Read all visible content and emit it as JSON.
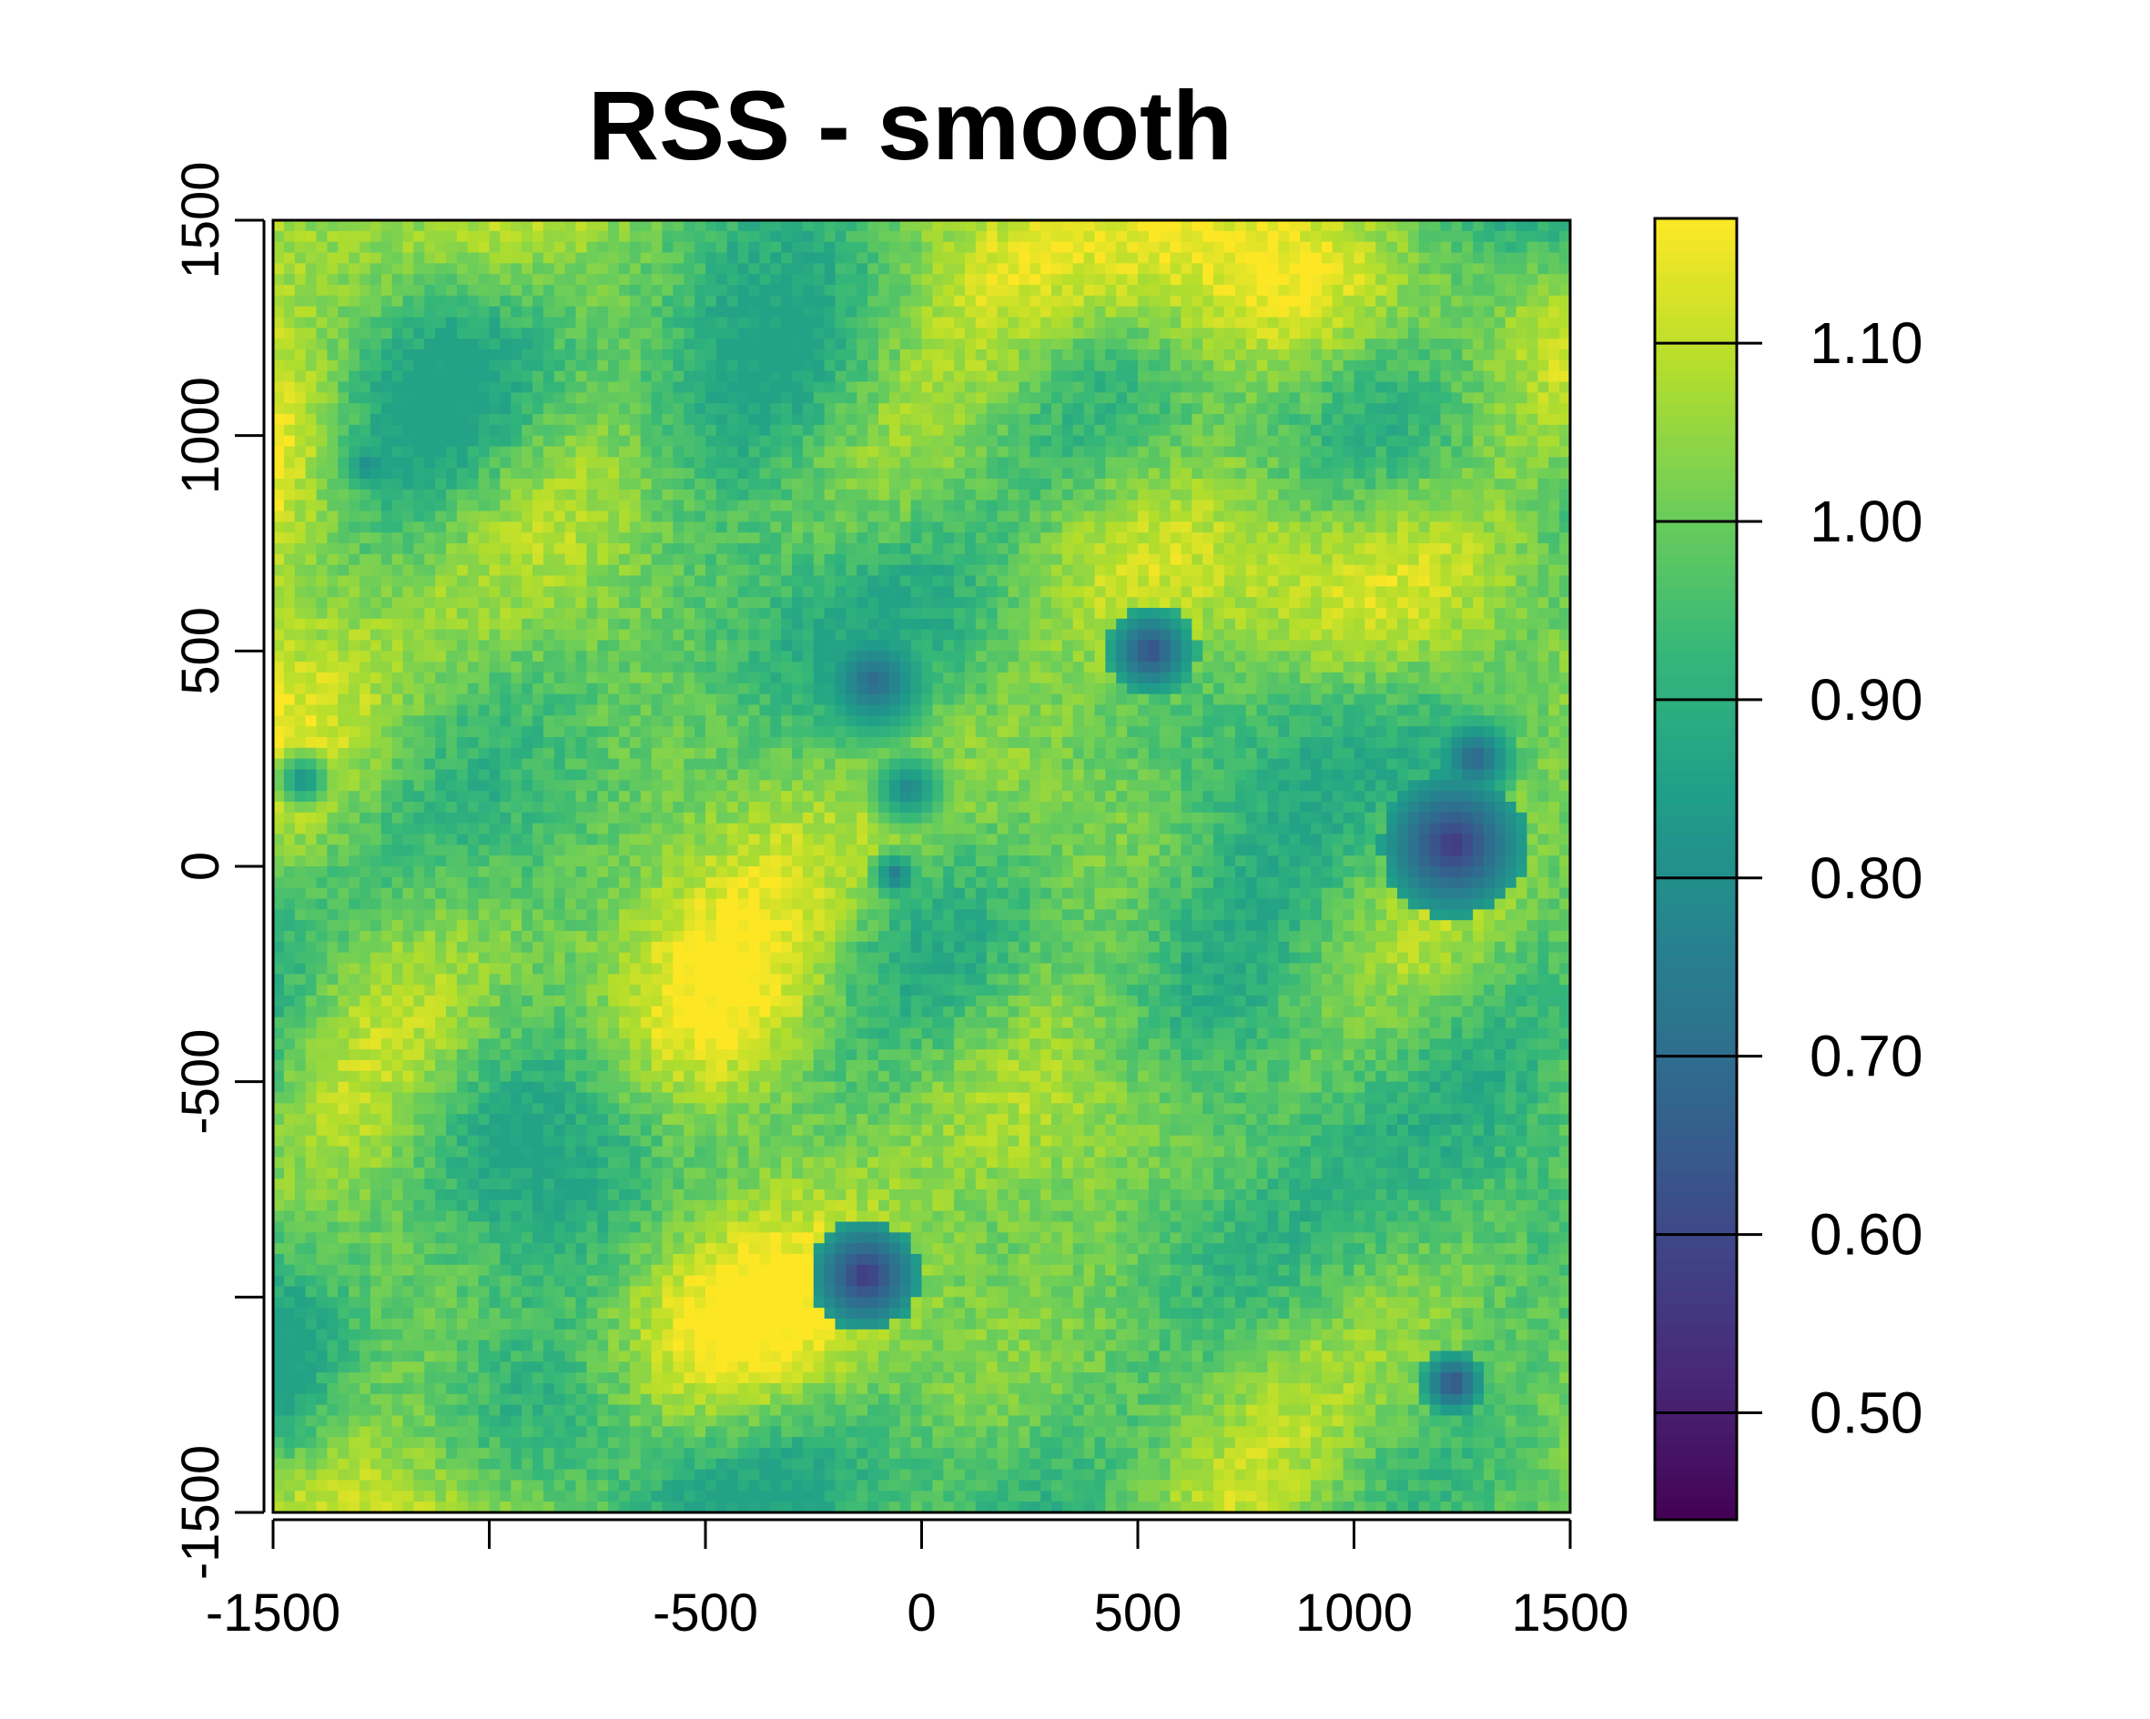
{
  "chart_data": {
    "type": "heatmap",
    "title": "RSS - smooth",
    "xlabel": "",
    "ylabel": "",
    "xlim": [
      -1500,
      1500
    ],
    "ylim": [
      -1500,
      1500
    ],
    "x_ticks": [
      -1500,
      -1000,
      -500,
      0,
      500,
      1000,
      1500
    ],
    "x_tick_labels": [
      "-1500",
      "",
      "-500",
      "0",
      "500",
      "1000",
      "1500"
    ],
    "y_ticks": [
      -1500,
      -1000,
      -500,
      0,
      500,
      1000,
      1500
    ],
    "y_tick_labels": [
      "-1500",
      "",
      "-500",
      "0",
      "500",
      "1000",
      "1500"
    ],
    "grid_size": 120,
    "value_range": [
      0.44,
      1.17
    ],
    "legend": {
      "placement": "right",
      "ticks": [
        0.5,
        0.6,
        0.7,
        0.8,
        0.9,
        1.0,
        1.1
      ],
      "labels": [
        "0.50",
        "0.60",
        "0.70",
        "0.80",
        "0.90",
        "1.00",
        "1.10"
      ]
    },
    "colormap": [
      "#440154",
      "#482878",
      "#3e4989",
      "#31688e",
      "#26828e",
      "#1f9e89",
      "#35b779",
      "#6ece58",
      "#b5de2b",
      "#fde725"
    ],
    "low_regions": [
      {
        "x": -1280,
        "y": 930,
        "radius": 110,
        "value": 0.78
      },
      {
        "x": -110,
        "y": 430,
        "radius": 160,
        "value": 0.68
      },
      {
        "x": 530,
        "y": 500,
        "radius": 110,
        "value": 0.6
      },
      {
        "x": 1230,
        "y": 50,
        "radius": 170,
        "value": 0.55
      },
      {
        "x": 1280,
        "y": 250,
        "radius": 110,
        "value": 0.66
      },
      {
        "x": -130,
        "y": -950,
        "radius": 130,
        "value": 0.55
      },
      {
        "x": 1230,
        "y": -1200,
        "radius": 80,
        "value": 0.6
      },
      {
        "x": -30,
        "y": 180,
        "radius": 120,
        "value": 0.76
      },
      {
        "x": -60,
        "y": -20,
        "radius": 70,
        "value": 0.72
      },
      {
        "x": -1430,
        "y": 200,
        "radius": 80,
        "value": 0.78
      }
    ]
  }
}
